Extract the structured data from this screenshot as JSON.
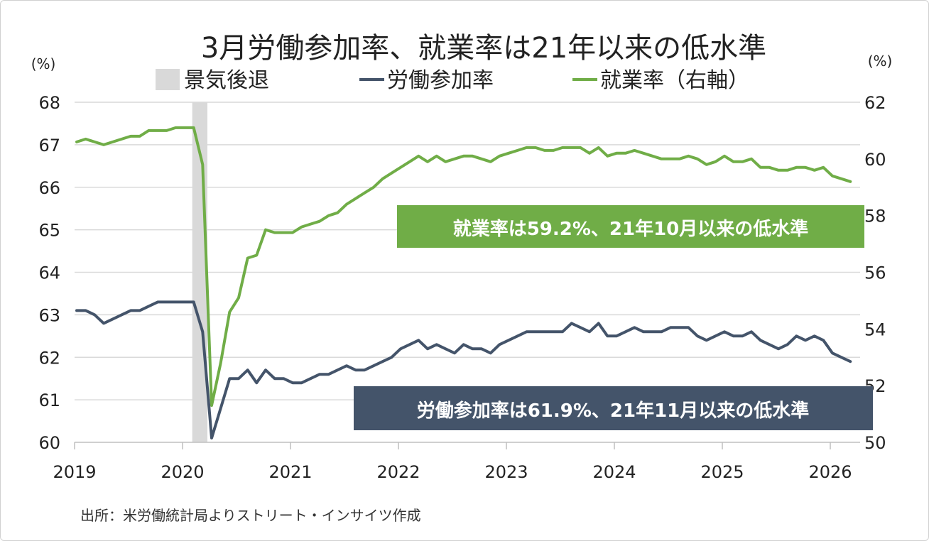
{
  "chart_data": {
    "type": "line",
    "title": "3月労働参加率、就業率は21年以来の低水準",
    "left_unit": "(%)",
    "right_unit": "(%)",
    "legend": [
      {
        "name": "景気後退",
        "color": "#d9d9d9",
        "kind": "band"
      },
      {
        "name": "労働参加率",
        "color": "#44546a",
        "kind": "line"
      },
      {
        "name": "就業率（右軸）",
        "color": "#70ad47",
        "kind": "line"
      }
    ],
    "x_start": "2019-01",
    "x_ticks": [
      "2019",
      "2020",
      "2021",
      "2022",
      "2023",
      "2024",
      "2025",
      "2026"
    ],
    "ylim_left": [
      60,
      68
    ],
    "yticks_left": [
      "60",
      "61",
      "62",
      "63",
      "64",
      "65",
      "66",
      "67",
      "68"
    ],
    "ylim_right": [
      50,
      62
    ],
    "yticks_right": [
      "50",
      "52",
      "54",
      "56",
      "58",
      "60",
      "62"
    ],
    "recession": {
      "start": "2020-02",
      "end": "2020-04"
    },
    "series": [
      {
        "name": "労働参加率",
        "axis": "left",
        "color": "#44546a",
        "values": [
          63.1,
          63.1,
          63.0,
          62.8,
          62.9,
          63.0,
          63.1,
          63.1,
          63.2,
          63.3,
          63.3,
          63.3,
          63.3,
          63.3,
          62.6,
          60.1,
          60.8,
          61.5,
          61.5,
          61.7,
          61.4,
          61.7,
          61.5,
          61.5,
          61.4,
          61.4,
          61.5,
          61.6,
          61.6,
          61.7,
          61.8,
          61.7,
          61.7,
          61.8,
          61.9,
          62.0,
          62.2,
          62.3,
          62.4,
          62.2,
          62.3,
          62.2,
          62.1,
          62.3,
          62.2,
          62.2,
          62.1,
          62.3,
          62.4,
          62.5,
          62.6,
          62.6,
          62.6,
          62.6,
          62.6,
          62.8,
          62.7,
          62.6,
          62.8,
          62.5,
          62.5,
          62.6,
          62.7,
          62.6,
          62.6,
          62.6,
          62.7,
          62.7,
          62.7,
          62.5,
          62.4,
          62.5,
          62.6,
          62.5,
          62.5,
          62.6,
          62.4,
          62.3,
          62.2,
          62.3,
          62.5,
          62.4,
          62.5,
          62.4,
          62.1,
          62.0,
          61.9
        ]
      },
      {
        "name": "就業率（右軸）",
        "axis": "right",
        "color": "#70ad47",
        "values": [
          60.6,
          60.7,
          60.6,
          60.5,
          60.6,
          60.7,
          60.8,
          60.8,
          61.0,
          61.0,
          61.0,
          61.1,
          61.1,
          61.1,
          59.8,
          51.3,
          52.8,
          54.6,
          55.1,
          56.5,
          56.6,
          57.5,
          57.4,
          57.4,
          57.4,
          57.6,
          57.7,
          57.8,
          58.0,
          58.1,
          58.4,
          58.6,
          58.8,
          59.0,
          59.3,
          59.5,
          59.7,
          59.9,
          60.1,
          59.9,
          60.1,
          59.9,
          60.0,
          60.1,
          60.1,
          60.0,
          59.9,
          60.1,
          60.2,
          60.3,
          60.4,
          60.4,
          60.3,
          60.3,
          60.4,
          60.4,
          60.4,
          60.2,
          60.4,
          60.1,
          60.2,
          60.2,
          60.3,
          60.2,
          60.1,
          60.0,
          60.0,
          60.0,
          60.1,
          60.0,
          59.8,
          59.9,
          60.1,
          59.9,
          59.9,
          60.0,
          59.7,
          59.7,
          59.6,
          59.6,
          59.7,
          59.7,
          59.6,
          59.7,
          59.4,
          59.3,
          59.2
        ]
      }
    ],
    "annotations": [
      {
        "text": "就業率は59.2%、21年10月以来の低水準",
        "color": "#70ad47"
      },
      {
        "text": "労働参加率は61.9%、21年11月以来の低水準",
        "color": "#44546a"
      }
    ],
    "source": "出所：米労働統計局よりストリート・インサイツ作成"
  }
}
